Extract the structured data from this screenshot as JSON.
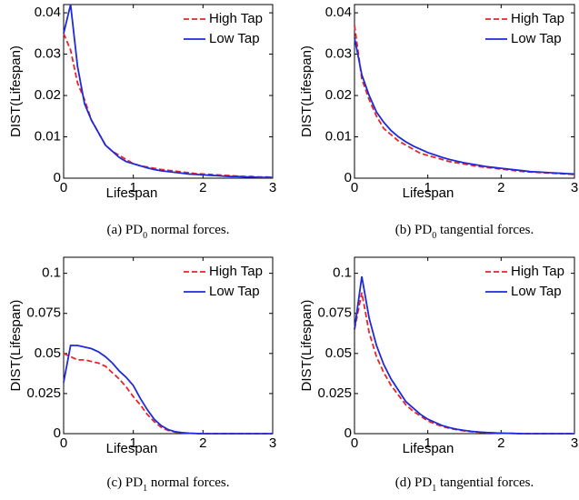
{
  "chart_data": [
    {
      "type": "line",
      "caption": [
        "(a) PD",
        "0",
        " normal forces."
      ],
      "xlabel": "Lifespan",
      "ylabel": "DIST(Lifespan)",
      "xlim": [
        0,
        3
      ],
      "xticks": [
        0,
        1,
        2,
        3
      ],
      "ylim": [
        0,
        0.042
      ],
      "yticks": [
        0,
        0.01,
        0.02,
        0.03,
        0.04
      ],
      "legend": "upper right",
      "x": [
        0,
        0.1,
        0.2,
        0.3,
        0.4,
        0.5,
        0.6,
        0.7,
        0.8,
        0.9,
        1,
        1.1,
        1.2,
        1.3,
        1.4,
        1.5,
        1.6,
        1.7,
        1.8,
        1.9,
        2,
        2.1,
        2.2,
        2.3,
        2.4,
        2.5,
        2.6,
        2.7,
        2.8,
        2.9,
        3
      ],
      "series": [
        {
          "name": "High Tap",
          "color": "#e8262a",
          "dash": true,
          "values": [
            0.035,
            0.031,
            0.023,
            0.019,
            0.014,
            0.011,
            0.008,
            0.0065,
            0.0055,
            0.0045,
            0.0035,
            0.003,
            0.0027,
            0.0024,
            0.0021,
            0.0019,
            0.0017,
            0.0015,
            0.0013,
            0.0011,
            0.001,
            0.0009,
            0.0008,
            0.0007,
            0.0006,
            0.0005,
            0.0004,
            0.0004,
            0.0003,
            0.0003,
            0.0002
          ]
        },
        {
          "name": "Low Tap",
          "color": "#1f2ad8",
          "dash": false,
          "values": [
            0.035,
            0.042,
            0.027,
            0.018,
            0.014,
            0.011,
            0.008,
            0.0065,
            0.005,
            0.004,
            0.0035,
            0.003,
            0.0025,
            0.0021,
            0.0018,
            0.0016,
            0.0014,
            0.0012,
            0.001,
            0.0009,
            0.0008,
            0.0007,
            0.0006,
            0.0005,
            0.0004,
            0.0004,
            0.0003,
            0.0003,
            0.0002,
            0.0002,
            0.0002
          ]
        }
      ]
    },
    {
      "type": "line",
      "caption": [
        "(b) PD",
        "0",
        " tangential forces."
      ],
      "xlabel": "Lifespan",
      "ylabel": "DIST(Lifespan)",
      "xlim": [
        0,
        3
      ],
      "xticks": [
        0,
        1,
        2,
        3
      ],
      "ylim": [
        0,
        0.042
      ],
      "yticks": [
        0,
        0.01,
        0.02,
        0.03,
        0.04
      ],
      "legend": "upper right",
      "x": [
        0,
        0.1,
        0.2,
        0.3,
        0.4,
        0.5,
        0.6,
        0.7,
        0.8,
        0.9,
        1,
        1.1,
        1.2,
        1.3,
        1.4,
        1.5,
        1.6,
        1.7,
        1.8,
        1.9,
        2,
        2.1,
        2.2,
        2.3,
        2.4,
        2.5,
        2.6,
        2.7,
        2.8,
        2.9,
        3
      ],
      "series": [
        {
          "name": "High Tap",
          "color": "#e8262a",
          "dash": true,
          "values": [
            0.037,
            0.024,
            0.019,
            0.015,
            0.012,
            0.0105,
            0.009,
            0.008,
            0.007,
            0.006,
            0.0055,
            0.005,
            0.0045,
            0.004,
            0.0037,
            0.0034,
            0.0031,
            0.0028,
            0.0026,
            0.0024,
            0.0022,
            0.002,
            0.0018,
            0.0016,
            0.0015,
            0.0014,
            0.0013,
            0.0012,
            0.0011,
            0.001,
            0.0009
          ]
        },
        {
          "name": "Low Tap",
          "color": "#1f2ad8",
          "dash": false,
          "values": [
            0.034,
            0.025,
            0.02,
            0.016,
            0.0135,
            0.0115,
            0.01,
            0.0088,
            0.0078,
            0.007,
            0.0062,
            0.0056,
            0.005,
            0.0045,
            0.0041,
            0.0037,
            0.0034,
            0.0031,
            0.0028,
            0.0026,
            0.0024,
            0.0022,
            0.002,
            0.0018,
            0.0016,
            0.0015,
            0.0014,
            0.0013,
            0.0012,
            0.0011,
            0.001
          ]
        }
      ]
    },
    {
      "type": "line",
      "caption": [
        "(c) PD",
        "1",
        " normal forces."
      ],
      "xlabel": "Lifespan",
      "ylabel": "DIST(Lifespan)",
      "xlim": [
        0,
        3
      ],
      "xticks": [
        0,
        1,
        2,
        3
      ],
      "ylim": [
        0,
        0.11
      ],
      "yticks": [
        0,
        0.025,
        0.05,
        0.075,
        0.1
      ],
      "legend": "upper right",
      "x": [
        0,
        0.1,
        0.2,
        0.3,
        0.4,
        0.5,
        0.6,
        0.7,
        0.8,
        0.9,
        1,
        1.1,
        1.2,
        1.3,
        1.4,
        1.5,
        1.6,
        1.7,
        1.8,
        1.9,
        2,
        2.1,
        2.2,
        2.3,
        2.4,
        2.5,
        2.6,
        2.7,
        2.8,
        2.9,
        3
      ],
      "series": [
        {
          "name": "High Tap",
          "color": "#e8262a",
          "dash": true,
          "values": [
            0.05,
            0.048,
            0.046,
            0.046,
            0.045,
            0.044,
            0.042,
            0.038,
            0.034,
            0.029,
            0.023,
            0.018,
            0.012,
            0.0075,
            0.004,
            0.002,
            0.001,
            0.0005,
            0.0002,
            0.0001,
            0,
            0,
            0,
            0,
            0,
            0,
            0,
            0,
            0,
            0,
            0
          ]
        },
        {
          "name": "Low Tap",
          "color": "#1f2ad8",
          "dash": false,
          "values": [
            0.032,
            0.055,
            0.055,
            0.054,
            0.053,
            0.051,
            0.048,
            0.044,
            0.039,
            0.035,
            0.03,
            0.022,
            0.015,
            0.009,
            0.005,
            0.0025,
            0.0012,
            0.0006,
            0.0003,
            0.0001,
            0,
            0,
            0,
            0,
            0,
            0,
            0,
            0,
            0,
            0,
            0
          ]
        }
      ]
    },
    {
      "type": "line",
      "caption": [
        "(d) PD",
        "1",
        " tangential forces."
      ],
      "xlabel": "Lifespan",
      "ylabel": "DIST(Lifespan)",
      "xlim": [
        0,
        3
      ],
      "xticks": [
        0,
        1,
        2,
        3
      ],
      "ylim": [
        0,
        0.11
      ],
      "yticks": [
        0,
        0.025,
        0.05,
        0.075,
        0.1
      ],
      "legend": "upper right",
      "x": [
        0,
        0.1,
        0.2,
        0.3,
        0.4,
        0.5,
        0.6,
        0.7,
        0.8,
        0.9,
        1,
        1.1,
        1.2,
        1.3,
        1.4,
        1.5,
        1.6,
        1.7,
        1.8,
        1.9,
        2,
        2.1,
        2.2,
        2.3,
        2.4,
        2.5,
        2.6,
        2.7,
        2.8,
        2.9,
        3
      ],
      "series": [
        {
          "name": "High Tap",
          "color": "#e8262a",
          "dash": true,
          "values": [
            0.065,
            0.088,
            0.063,
            0.048,
            0.038,
            0.03,
            0.024,
            0.018,
            0.014,
            0.011,
            0.008,
            0.006,
            0.0045,
            0.0033,
            0.0024,
            0.0017,
            0.0012,
            0.0009,
            0.0006,
            0.0004,
            0.0003,
            0.0002,
            0.0001,
            0,
            0,
            0,
            0,
            0,
            0,
            0,
            0
          ]
        },
        {
          "name": "Low Tap",
          "color": "#1f2ad8",
          "dash": false,
          "values": [
            0.065,
            0.098,
            0.072,
            0.055,
            0.043,
            0.034,
            0.027,
            0.02,
            0.016,
            0.012,
            0.009,
            0.007,
            0.005,
            0.0037,
            0.0027,
            0.002,
            0.0014,
            0.001,
            0.0007,
            0.0005,
            0.0003,
            0.0002,
            0.0001,
            0,
            0,
            0,
            0,
            0,
            0,
            0,
            0
          ]
        }
      ]
    }
  ]
}
